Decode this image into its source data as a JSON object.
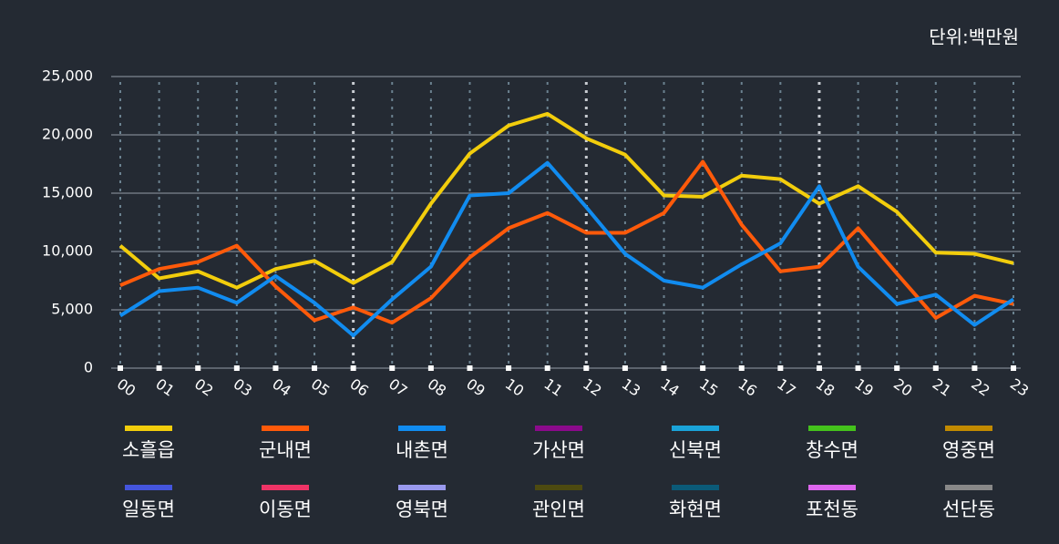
{
  "chart_data": {
    "type": "line",
    "unit": "단위:백만원",
    "categories": [
      "00",
      "01",
      "02",
      "03",
      "04",
      "05",
      "06",
      "07",
      "08",
      "09",
      "10",
      "11",
      "12",
      "13",
      "14",
      "15",
      "16",
      "17",
      "18",
      "19",
      "20",
      "21",
      "22",
      "23"
    ],
    "ylim": [
      0,
      25000
    ],
    "yticks": [
      0,
      {
        "value": 5000,
        "label": "5,000"
      },
      {
        "value": 10000,
        "label": "10,000"
      },
      {
        "value": 15000,
        "label": "15,000"
      },
      {
        "value": 20000,
        "label": "20,000"
      },
      {
        "value": 25000,
        "label": "25,000"
      }
    ],
    "grid": true,
    "series": [
      {
        "name": "소흘읍",
        "color": "#f2cd0c",
        "values": [
          10500,
          7700,
          8300,
          6900,
          8500,
          9200,
          7300,
          9100,
          14100,
          18400,
          20800,
          21800,
          19700,
          18300,
          14800,
          14700,
          16500,
          16200,
          14100,
          15600,
          13400,
          9900,
          9800,
          9000
        ]
      },
      {
        "name": "군내면",
        "color": "#ff5a0a",
        "values": [
          7100,
          8500,
          9100,
          10500,
          7000,
          4100,
          5200,
          3900,
          6000,
          9500,
          12000,
          13300,
          11600,
          11600,
          13300,
          17700,
          12300,
          8300,
          8700,
          12000,
          8100,
          4300,
          6200,
          5500
        ]
      },
      {
        "name": "내촌면",
        "color": "#118cf0",
        "values": [
          4500,
          6600,
          6900,
          5600,
          7900,
          5600,
          2800,
          5900,
          8700,
          14800,
          15000,
          17600,
          13800,
          9800,
          7500,
          6900,
          8900,
          10700,
          15600,
          8700,
          5500,
          6300,
          3700,
          5900
        ]
      },
      {
        "name": "가산면",
        "color": "#8b0a8b"
      },
      {
        "name": "신북면",
        "color": "#1aa3d9"
      },
      {
        "name": "창수면",
        "color": "#44c21c"
      },
      {
        "name": "영중면",
        "color": "#c28a00"
      },
      {
        "name": "일동면",
        "color": "#4455dd"
      },
      {
        "name": "이동면",
        "color": "#ee3366"
      },
      {
        "name": "영북면",
        "color": "#9999ee"
      },
      {
        "name": "관인면",
        "color": "#4d4a10"
      },
      {
        "name": "화현면",
        "color": "#0b5a78"
      },
      {
        "name": "포천동",
        "color": "#dd66ee"
      },
      {
        "name": "선단동",
        "color": "#888888"
      }
    ]
  }
}
